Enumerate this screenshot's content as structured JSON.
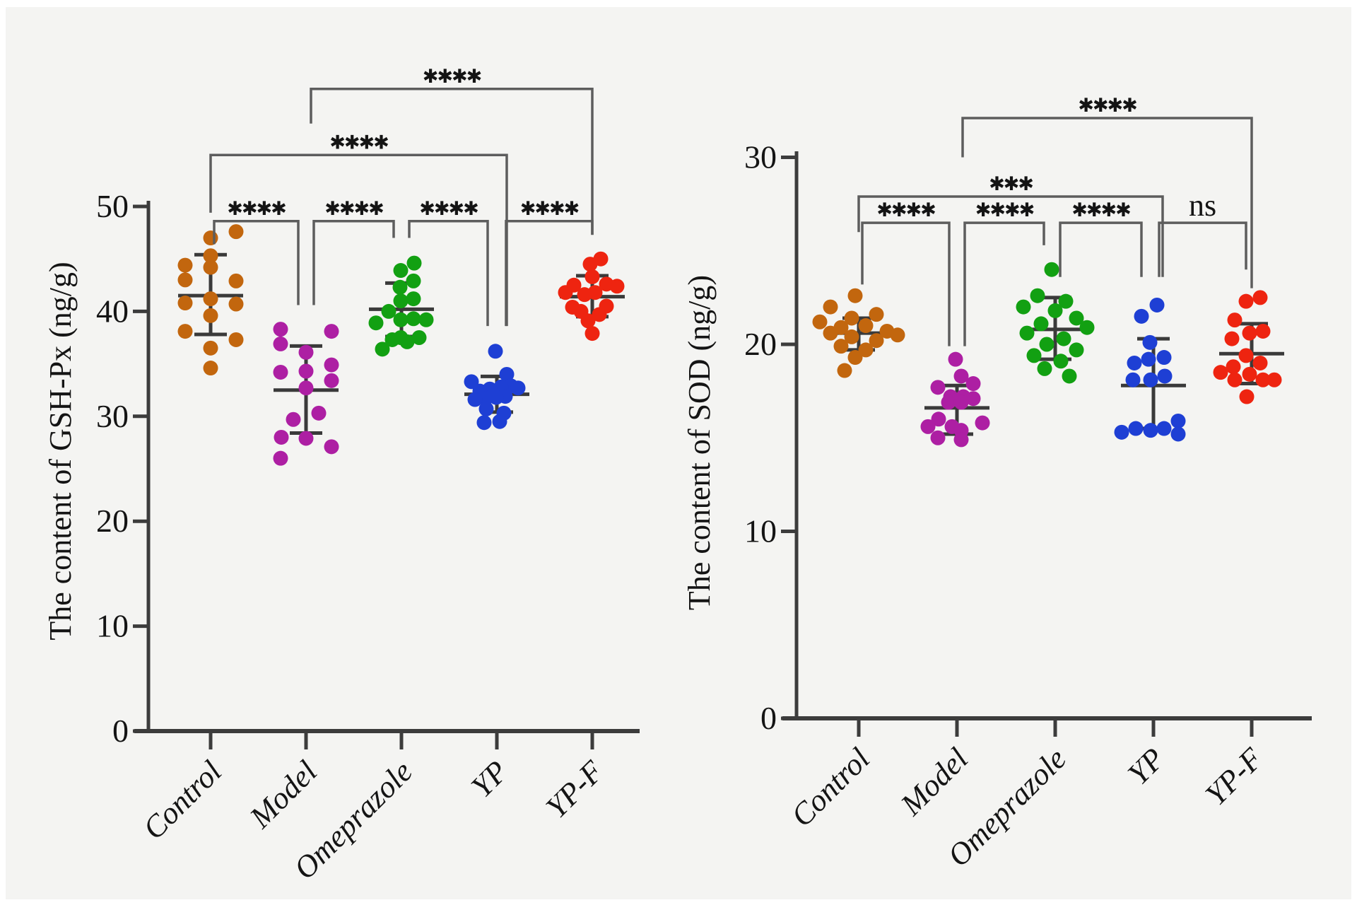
{
  "figure": {
    "background": "#f4f4f2",
    "axis_color": "#3c3c3c",
    "errorbar_color": "#3a3a3a",
    "bracket_color": "#5d5d5d",
    "text_color": "#141414",
    "star_char": "✱"
  },
  "chart_data": [
    {
      "type": "scatter",
      "title": "",
      "ylabel": "The content of GSH-Px (ng/g)",
      "xlabel": "",
      "ylim": [
        0,
        50
      ],
      "yticks": [
        "0",
        "10",
        "20",
        "30",
        "40",
        "50"
      ],
      "ytick_values": [
        0,
        10,
        20,
        30,
        40,
        50
      ],
      "grid": false,
      "legend_position": "none",
      "categories": [
        "Control",
        "Model",
        "Omeprazole",
        "YP",
        "YP-F"
      ],
      "groups": [
        {
          "name": "Control",
          "color": "#c2660e",
          "mean": 41.5,
          "sd_hi": 45.4,
          "sd_lo": 37.8,
          "points": [
            [
              47.6,
              36
            ],
            [
              47.0,
              0
            ],
            [
              45.3,
              0
            ],
            [
              44.4,
              -36
            ],
            [
              44.2,
              0
            ],
            [
              43.0,
              -36
            ],
            [
              42.9,
              36
            ],
            [
              41.2,
              0
            ],
            [
              40.8,
              -36
            ],
            [
              40.7,
              36
            ],
            [
              39.6,
              0
            ],
            [
              38.1,
              -36
            ],
            [
              37.3,
              36
            ],
            [
              36.5,
              0
            ],
            [
              34.6,
              0
            ]
          ]
        },
        {
          "name": "Model",
          "color": "#ad1fa3",
          "mean": 32.5,
          "sd_hi": 36.7,
          "sd_lo": 28.4,
          "points": [
            [
              38.3,
              -36
            ],
            [
              38.1,
              36
            ],
            [
              36.9,
              -36
            ],
            [
              36.1,
              0
            ],
            [
              34.9,
              36
            ],
            [
              34.3,
              0
            ],
            [
              34.2,
              -36
            ],
            [
              33.4,
              36
            ],
            [
              32.7,
              0
            ],
            [
              30.3,
              18
            ],
            [
              29.7,
              -18
            ],
            [
              28.0,
              -35
            ],
            [
              27.9,
              0
            ],
            [
              27.1,
              36
            ],
            [
              26.0,
              -36
            ]
          ]
        },
        {
          "name": "Omeprazole",
          "color": "#12a012",
          "mean": 40.2,
          "sd_hi": 42.7,
          "sd_lo": 37.6,
          "points": [
            [
              44.6,
              18
            ],
            [
              43.9,
              -1
            ],
            [
              42.9,
              17
            ],
            [
              42.3,
              -2
            ],
            [
              41.2,
              17
            ],
            [
              41.0,
              -1
            ],
            [
              40.0,
              -18
            ],
            [
              39.3,
              17
            ],
            [
              39.2,
              -1
            ],
            [
              39.2,
              35
            ],
            [
              38.9,
              -36
            ],
            [
              37.5,
              -1
            ],
            [
              37.5,
              25
            ],
            [
              37.3,
              -13
            ],
            [
              37.1,
              8
            ],
            [
              36.4,
              -27
            ]
          ]
        },
        {
          "name": "YP",
          "color": "#1e3fd4",
          "mean": 32.1,
          "sd_hi": 33.8,
          "sd_lo": 30.4,
          "points": [
            [
              36.2,
              -2
            ],
            [
              34.0,
              14
            ],
            [
              33.3,
              -36
            ],
            [
              32.9,
              20
            ],
            [
              32.8,
              6
            ],
            [
              32.7,
              30
            ],
            [
              32.6,
              -10
            ],
            [
              32.4,
              -24
            ],
            [
              31.9,
              12
            ],
            [
              31.8,
              -1
            ],
            [
              31.7,
              -16
            ],
            [
              31.6,
              -31
            ],
            [
              30.7,
              -15
            ],
            [
              30.3,
              10
            ],
            [
              29.5,
              4
            ],
            [
              29.4,
              -18
            ]
          ]
        },
        {
          "name": "YP-F",
          "color": "#ee2410",
          "mean": 41.4,
          "sd_hi": 43.4,
          "sd_lo": 39.5,
          "points": [
            [
              45.0,
              12
            ],
            [
              44.5,
              -3
            ],
            [
              43.3,
              0
            ],
            [
              42.6,
              20
            ],
            [
              42.5,
              -26
            ],
            [
              42.4,
              35
            ],
            [
              41.8,
              -38
            ],
            [
              41.8,
              4
            ],
            [
              41.6,
              -11
            ],
            [
              40.5,
              20
            ],
            [
              40.4,
              -28
            ],
            [
              40.0,
              -16
            ],
            [
              39.7,
              10
            ],
            [
              39.1,
              -6
            ],
            [
              37.9,
              0
            ]
          ]
        }
      ],
      "significance_brackets": [
        {
          "a": 0,
          "b": 1,
          "label": "****",
          "y": 48.6,
          "da": 46.4,
          "db": 40.6,
          "oxa": 5,
          "oxb": -11
        },
        {
          "a": 1,
          "b": 2,
          "label": "****",
          "y": 48.6,
          "da": 40.6,
          "db": 47.0,
          "oxa": 11,
          "oxb": -11
        },
        {
          "a": 2,
          "b": 3,
          "label": "****",
          "y": 48.6,
          "da": 47.0,
          "db": 38.6,
          "oxa": 11,
          "oxb": -13
        },
        {
          "a": 3,
          "b": 4,
          "label": "****",
          "y": 48.6,
          "da": 38.6,
          "db": 47.3,
          "oxa": 13,
          "oxb": 0
        },
        {
          "a": 0,
          "b": 3,
          "label": "****",
          "y": 54.9,
          "da": 49.4,
          "db": 38.6,
          "oxa": 0,
          "oxb": 14
        },
        {
          "a": 1,
          "b": 4,
          "label": "****",
          "y": 61.2,
          "da": 57.9,
          "db": 47.3,
          "oxa": 7,
          "oxb": 0
        }
      ]
    },
    {
      "type": "scatter",
      "title": "",
      "ylabel": "The content of SOD (ng/g)",
      "xlabel": "",
      "ylim": [
        0,
        30
      ],
      "yticks": [
        "0",
        "10",
        "20",
        "30"
      ],
      "ytick_values": [
        0,
        10,
        20,
        30
      ],
      "grid": false,
      "legend_position": "none",
      "categories": [
        "Control",
        "Model",
        "Omeprazole",
        "YP",
        "YP-F"
      ],
      "groups": [
        {
          "name": "Control",
          "color": "#c2660e",
          "mean": 20.6,
          "sd_hi": 21.4,
          "sd_lo": 19.7,
          "points": [
            [
              22.6,
              -5
            ],
            [
              22.0,
              -40
            ],
            [
              21.6,
              25
            ],
            [
              21.4,
              -10
            ],
            [
              21.2,
              -55
            ],
            [
              21.0,
              10
            ],
            [
              20.9,
              -25
            ],
            [
              20.7,
              40
            ],
            [
              20.6,
              -40
            ],
            [
              20.5,
              55
            ],
            [
              20.4,
              -10
            ],
            [
              20.2,
              25
            ],
            [
              19.9,
              -25
            ],
            [
              19.7,
              10
            ],
            [
              19.3,
              -5
            ],
            [
              18.6,
              -20
            ]
          ]
        },
        {
          "name": "Model",
          "color": "#ad1fa3",
          "mean": 16.6,
          "sd_hi": 17.8,
          "sd_lo": 15.2,
          "points": [
            [
              19.2,
              -2
            ],
            [
              18.3,
              6
            ],
            [
              17.9,
              23
            ],
            [
              17.7,
              -27
            ],
            [
              17.2,
              -9
            ],
            [
              17.2,
              9
            ],
            [
              17.1,
              23
            ],
            [
              16.9,
              -12
            ],
            [
              16.9,
              6
            ],
            [
              16.0,
              -26
            ],
            [
              15.8,
              36
            ],
            [
              15.6,
              -41
            ],
            [
              15.6,
              -7
            ],
            [
              15.4,
              6
            ],
            [
              15.0,
              -27
            ],
            [
              14.9,
              6
            ]
          ]
        },
        {
          "name": "Omeprazole",
          "color": "#12a012",
          "mean": 20.8,
          "sd_hi": 22.5,
          "sd_lo": 19.2,
          "points": [
            [
              24.0,
              -5
            ],
            [
              22.6,
              -25
            ],
            [
              22.3,
              15
            ],
            [
              22.0,
              -45
            ],
            [
              21.8,
              0
            ],
            [
              21.4,
              30
            ],
            [
              21.1,
              -20
            ],
            [
              20.9,
              45
            ],
            [
              20.6,
              -40
            ],
            [
              20.3,
              12
            ],
            [
              20.0,
              -12
            ],
            [
              19.7,
              30
            ],
            [
              19.4,
              -30
            ],
            [
              19.1,
              8
            ],
            [
              18.7,
              -15
            ],
            [
              18.3,
              20
            ]
          ]
        },
        {
          "name": "YP",
          "color": "#1e3fd4",
          "mean": 17.8,
          "sd_hi": 20.3,
          "sd_lo": 15.5,
          "points": [
            [
              22.1,
              5
            ],
            [
              21.5,
              -17
            ],
            [
              20.1,
              -5
            ],
            [
              19.3,
              15
            ],
            [
              19.2,
              -7
            ],
            [
              19.0,
              -27
            ],
            [
              18.3,
              16
            ],
            [
              18.1,
              -29
            ],
            [
              18.1,
              -4
            ],
            [
              15.9,
              35
            ],
            [
              15.5,
              -25
            ],
            [
              15.5,
              15
            ],
            [
              15.4,
              -4
            ],
            [
              15.3,
              -45
            ],
            [
              15.2,
              35
            ]
          ]
        },
        {
          "name": "YP-F",
          "color": "#ee2410",
          "mean": 19.5,
          "sd_hi": 21.1,
          "sd_lo": 17.9,
          "points": [
            [
              22.5,
              12
            ],
            [
              22.3,
              -8
            ],
            [
              21.3,
              -24
            ],
            [
              20.7,
              16
            ],
            [
              20.6,
              -3
            ],
            [
              20.3,
              -28
            ],
            [
              19.4,
              -8
            ],
            [
              19.0,
              12
            ],
            [
              18.8,
              -26
            ],
            [
              18.5,
              -44
            ],
            [
              18.4,
              -3
            ],
            [
              18.1,
              -24
            ],
            [
              18.1,
              16
            ],
            [
              18.1,
              32
            ],
            [
              17.2,
              -7
            ]
          ]
        }
      ],
      "significance_brackets": [
        {
          "a": 0,
          "b": 1,
          "label": "****",
          "y": 26.5,
          "da": 23.2,
          "db": 19.9,
          "oxa": 5,
          "oxb": -11
        },
        {
          "a": 1,
          "b": 2,
          "label": "****",
          "y": 26.5,
          "da": 19.9,
          "db": 25.3,
          "oxa": 11,
          "oxb": -16
        },
        {
          "a": 2,
          "b": 3,
          "label": "****",
          "y": 26.5,
          "da": 23.6,
          "db": 23.6,
          "oxa": 7,
          "oxb": -17
        },
        {
          "a": 3,
          "b": 4,
          "label": "ns",
          "y": 26.5,
          "da": 23.6,
          "db": 24.0,
          "oxa": 8,
          "oxb": -8
        },
        {
          "a": 0,
          "b": 3,
          "label": "***",
          "y": 27.9,
          "da": 26.0,
          "db": 23.6,
          "oxa": 0,
          "oxb": 13
        },
        {
          "a": 1,
          "b": 4,
          "label": "****",
          "y": 32.1,
          "da": 30.0,
          "db": 23.0,
          "oxa": 8,
          "oxb": 0
        }
      ]
    }
  ]
}
